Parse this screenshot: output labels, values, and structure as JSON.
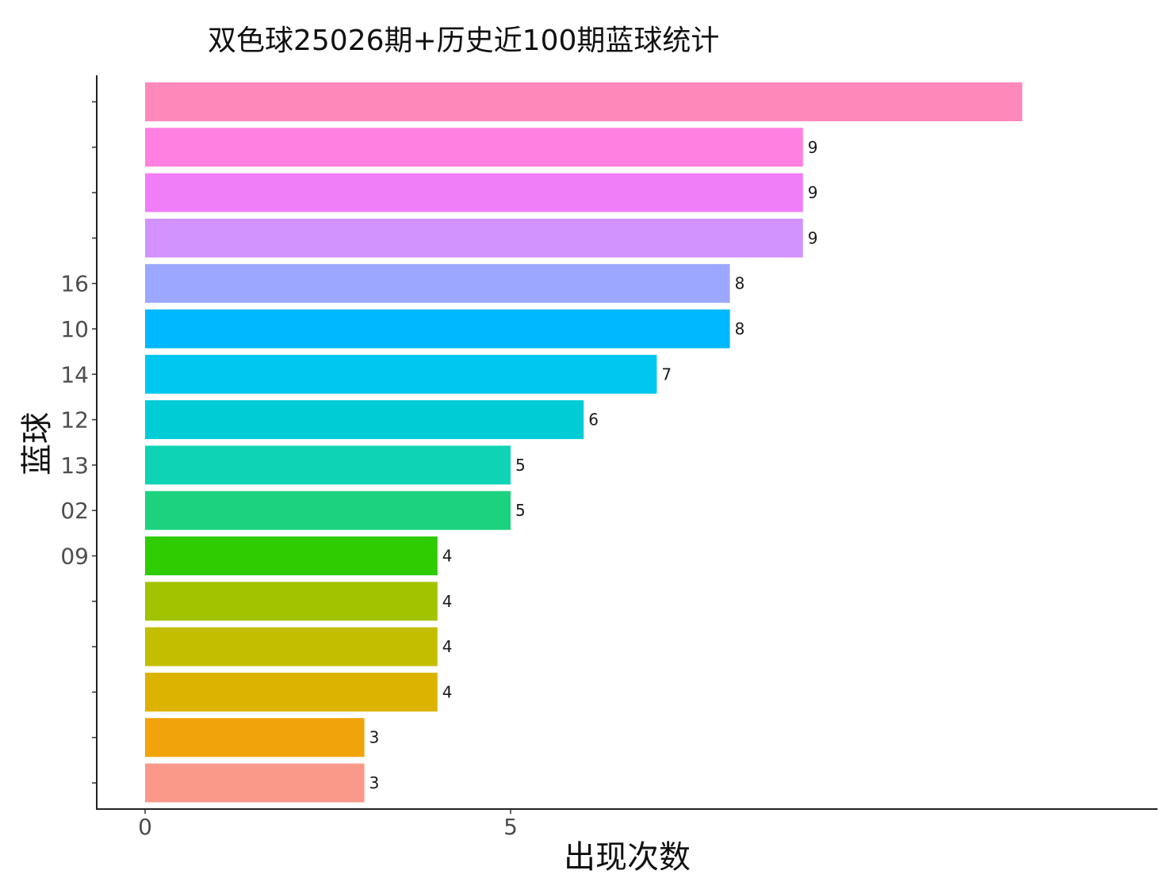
{
  "chart_data": {
    "type": "bar",
    "orientation": "horizontal",
    "title": "双色球25026期+历史近100期蓝球统计",
    "xlabel": "出现次数",
    "ylabel": "蓝球",
    "xlim": [
      0,
      14.5
    ],
    "x_ticks": [
      "0",
      "5"
    ],
    "grid": false,
    "legend": "none",
    "bars": [
      {
        "category": "",
        "value": 12,
        "label": "",
        "color": "#FF88BB"
      },
      {
        "category": "",
        "value": 9,
        "label": "9",
        "color": "#FF80E0"
      },
      {
        "category": "",
        "value": 9,
        "label": "9",
        "color": "#F07EF8"
      },
      {
        "category": "",
        "value": 9,
        "label": "9",
        "color": "#D393FF"
      },
      {
        "category": "16",
        "value": 8,
        "label": "8",
        "color": "#9CA8FF"
      },
      {
        "category": "10",
        "value": 8,
        "label": "8",
        "color": "#00B8FF"
      },
      {
        "category": "14",
        "value": 7,
        "label": "7",
        "color": "#00C7F0"
      },
      {
        "category": "12",
        "value": 6,
        "label": "6",
        "color": "#00CCD6"
      },
      {
        "category": "13",
        "value": 5,
        "label": "5",
        "color": "#0FD3B5"
      },
      {
        "category": "02",
        "value": 5,
        "label": "5",
        "color": "#1CD27E"
      },
      {
        "category": "09",
        "value": 4,
        "label": "4",
        "color": "#2ECC00"
      },
      {
        "category": "",
        "value": 4,
        "label": "4",
        "color": "#A2C300"
      },
      {
        "category": "",
        "value": 4,
        "label": "4",
        "color": "#C3BE00"
      },
      {
        "category": "",
        "value": 4,
        "label": "4",
        "color": "#DCB300"
      },
      {
        "category": "",
        "value": 3,
        "label": "3",
        "color": "#F0A30A"
      },
      {
        "category": "",
        "value": 3,
        "label": "3",
        "color": "#FA998A"
      }
    ]
  }
}
